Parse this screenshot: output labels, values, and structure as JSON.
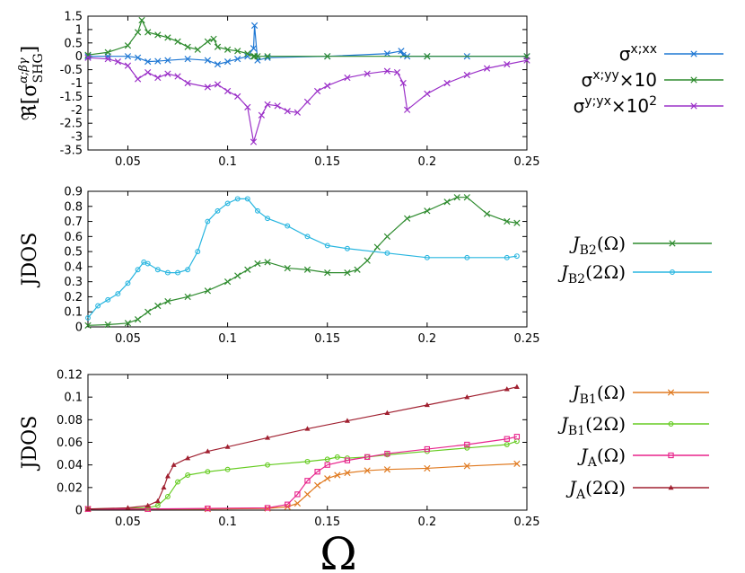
{
  "xlabel": "Ω",
  "chart_data": [
    {
      "type": "line",
      "ylabel": "ℜ[σ^{α;βγ}_SHG]",
      "ylabel_main": "ℜ[σ",
      "ylabel_sup": "α;βγ",
      "ylabel_sub": "SHG",
      "ylabel_close": "]",
      "xlim": [
        0.03,
        0.25
      ],
      "ylim": [
        -3.5,
        1.5
      ],
      "xticks": [
        "0.05",
        "0.1",
        "0.15",
        "0.2",
        "0.25"
      ],
      "yticks": [
        "1.5",
        "1",
        "0.5",
        "0",
        "-0.5",
        "-1",
        "-1.5",
        "-2",
        "-2.5",
        "-3",
        "-3.5"
      ],
      "series": [
        {
          "name": "σx;xx",
          "base": "σ",
          "sup": "x;xx",
          "suffix": "",
          "color": "#1f78d4",
          "marker": "x",
          "x": [
            0.03,
            0.04,
            0.05,
            0.055,
            0.06,
            0.065,
            0.07,
            0.08,
            0.09,
            0.095,
            0.1,
            0.105,
            0.11,
            0.113,
            0.1135,
            0.115,
            0.12,
            0.15,
            0.18,
            0.187,
            0.188,
            0.19,
            0.2,
            0.22,
            0.25
          ],
          "y": [
            0,
            0,
            0,
            -0.05,
            -0.2,
            -0.18,
            -0.15,
            -0.1,
            -0.15,
            -0.3,
            -0.2,
            -0.1,
            0,
            0.3,
            1.15,
            -0.15,
            -0.05,
            0,
            0.1,
            0.2,
            0.05,
            0,
            0,
            0,
            0
          ]
        },
        {
          "name": "σx;yy×10",
          "base": "σ",
          "sup": "x;yy",
          "suffix": "×10",
          "color": "#2e8b2e",
          "marker": "x",
          "x": [
            0.03,
            0.04,
            0.05,
            0.055,
            0.057,
            0.06,
            0.065,
            0.07,
            0.075,
            0.08,
            0.085,
            0.09,
            0.093,
            0.095,
            0.1,
            0.105,
            0.11,
            0.113,
            0.1135,
            0.115,
            0.12,
            0.15,
            0.2,
            0.25
          ],
          "y": [
            0.05,
            0.15,
            0.4,
            0.9,
            1.35,
            0.9,
            0.8,
            0.7,
            0.55,
            0.35,
            0.25,
            0.55,
            0.65,
            0.35,
            0.25,
            0.2,
            0.1,
            0,
            0,
            0,
            0,
            0,
            0,
            0
          ]
        },
        {
          "name": "σy;yx×10²",
          "base": "σ",
          "sup": "y;yx",
          "suffix": "×10",
          "suffix_sup": "2",
          "color": "#9b30c8",
          "marker": "x",
          "x": [
            0.03,
            0.04,
            0.045,
            0.05,
            0.055,
            0.06,
            0.065,
            0.07,
            0.075,
            0.08,
            0.09,
            0.095,
            0.1,
            0.105,
            0.11,
            0.113,
            0.117,
            0.12,
            0.125,
            0.13,
            0.135,
            0.14,
            0.145,
            0.15,
            0.16,
            0.17,
            0.18,
            0.185,
            0.188,
            0.19,
            0.2,
            0.21,
            0.22,
            0.23,
            0.24,
            0.25
          ],
          "y": [
            -0.05,
            -0.1,
            -0.2,
            -0.35,
            -0.85,
            -0.6,
            -0.8,
            -0.65,
            -0.75,
            -1.0,
            -1.15,
            -1.05,
            -1.3,
            -1.5,
            -1.9,
            -3.2,
            -2.2,
            -1.8,
            -1.85,
            -2.05,
            -2.1,
            -1.7,
            -1.3,
            -1.1,
            -0.8,
            -0.65,
            -0.55,
            -0.6,
            -1.0,
            -2.0,
            -1.4,
            -1.0,
            -0.7,
            -0.45,
            -0.3,
            -0.15
          ]
        }
      ]
    },
    {
      "type": "line",
      "ylabel": "JDOS",
      "xlim": [
        0.03,
        0.25
      ],
      "ylim": [
        0,
        0.9
      ],
      "xticks": [
        "0.05",
        "0.1",
        "0.15",
        "0.2",
        "0.25"
      ],
      "yticks": [
        "0.9",
        "0.8",
        "0.7",
        "0.6",
        "0.5",
        "0.4",
        "0.3",
        "0.2",
        "0.1",
        "0"
      ],
      "series": [
        {
          "name": "J_B2(Ω)",
          "base": "J",
          "sub": "B2",
          "arg": "(Ω)",
          "color": "#2e8b2e",
          "marker": "x",
          "x": [
            0.03,
            0.04,
            0.05,
            0.055,
            0.06,
            0.065,
            0.07,
            0.08,
            0.09,
            0.1,
            0.105,
            0.11,
            0.115,
            0.12,
            0.13,
            0.14,
            0.15,
            0.16,
            0.165,
            0.17,
            0.175,
            0.18,
            0.19,
            0.2,
            0.21,
            0.215,
            0.22,
            0.23,
            0.24,
            0.245
          ],
          "y": [
            0.01,
            0.015,
            0.025,
            0.05,
            0.1,
            0.14,
            0.17,
            0.2,
            0.24,
            0.3,
            0.34,
            0.38,
            0.42,
            0.43,
            0.39,
            0.38,
            0.36,
            0.36,
            0.38,
            0.44,
            0.53,
            0.6,
            0.72,
            0.77,
            0.83,
            0.86,
            0.86,
            0.75,
            0.7,
            0.69
          ]
        },
        {
          "name": "J_B2(2Ω)",
          "base": "J",
          "sub": "B2",
          "arg": "(2Ω)",
          "color": "#29b6e0",
          "marker": "o",
          "x": [
            0.03,
            0.035,
            0.04,
            0.045,
            0.05,
            0.055,
            0.058,
            0.06,
            0.065,
            0.07,
            0.075,
            0.08,
            0.085,
            0.09,
            0.095,
            0.1,
            0.105,
            0.11,
            0.115,
            0.12,
            0.13,
            0.14,
            0.15,
            0.16,
            0.18,
            0.2,
            0.22,
            0.24,
            0.245
          ],
          "y": [
            0.06,
            0.14,
            0.18,
            0.22,
            0.29,
            0.38,
            0.43,
            0.42,
            0.38,
            0.36,
            0.36,
            0.38,
            0.5,
            0.7,
            0.77,
            0.82,
            0.85,
            0.85,
            0.77,
            0.72,
            0.67,
            0.6,
            0.54,
            0.52,
            0.49,
            0.46,
            0.46,
            0.46,
            0.47
          ]
        }
      ]
    },
    {
      "type": "line",
      "ylabel": "JDOS",
      "xlim": [
        0.03,
        0.25
      ],
      "ylim": [
        0,
        0.12
      ],
      "xticks": [
        "0.05",
        "0.1",
        "0.15",
        "0.2",
        "0.25"
      ],
      "yticks": [
        "0.12",
        "0.1",
        "0.08",
        "0.06",
        "0.04",
        "0.02",
        "0"
      ],
      "series": [
        {
          "name": "J_B1(Ω)",
          "base": "J",
          "sub": "B1",
          "arg": "(Ω)",
          "color": "#e07a20",
          "marker": "x",
          "x": [
            0.03,
            0.06,
            0.09,
            0.12,
            0.13,
            0.135,
            0.14,
            0.145,
            0.15,
            0.155,
            0.16,
            0.17,
            0.18,
            0.2,
            0.22,
            0.245
          ],
          "y": [
            0.001,
            0.001,
            0.001,
            0.0015,
            0.003,
            0.006,
            0.014,
            0.022,
            0.028,
            0.031,
            0.033,
            0.035,
            0.036,
            0.037,
            0.039,
            0.041
          ]
        },
        {
          "name": "J_B1(2Ω)",
          "base": "J",
          "sub": "B1",
          "arg": "(2Ω)",
          "color": "#66cc22",
          "marker": "o",
          "x": [
            0.03,
            0.06,
            0.065,
            0.07,
            0.075,
            0.08,
            0.09,
            0.1,
            0.12,
            0.14,
            0.15,
            0.155,
            0.16,
            0.17,
            0.18,
            0.2,
            0.22,
            0.24,
            0.245
          ],
          "y": [
            0.001,
            0.002,
            0.004,
            0.012,
            0.025,
            0.031,
            0.034,
            0.036,
            0.04,
            0.043,
            0.045,
            0.047,
            0.046,
            0.047,
            0.049,
            0.052,
            0.055,
            0.058,
            0.061
          ]
        },
        {
          "name": "J_A(Ω)",
          "base": "J",
          "sub": "A",
          "arg": "(Ω)",
          "color": "#e8238c",
          "marker": "s",
          "x": [
            0.03,
            0.06,
            0.09,
            0.12,
            0.13,
            0.135,
            0.14,
            0.145,
            0.15,
            0.16,
            0.17,
            0.18,
            0.2,
            0.22,
            0.24,
            0.245
          ],
          "y": [
            0.001,
            0.001,
            0.0015,
            0.002,
            0.005,
            0.014,
            0.026,
            0.034,
            0.04,
            0.044,
            0.047,
            0.05,
            0.054,
            0.058,
            0.063,
            0.065
          ]
        },
        {
          "name": "J_A(2Ω)",
          "base": "J",
          "sub": "A",
          "arg": "(2Ω)",
          "color": "#a02030",
          "marker": "^",
          "x": [
            0.03,
            0.05,
            0.06,
            0.065,
            0.068,
            0.07,
            0.073,
            0.08,
            0.09,
            0.1,
            0.12,
            0.14,
            0.16,
            0.18,
            0.2,
            0.22,
            0.24,
            0.245
          ],
          "y": [
            0.001,
            0.002,
            0.004,
            0.008,
            0.02,
            0.03,
            0.04,
            0.046,
            0.052,
            0.056,
            0.064,
            0.072,
            0.079,
            0.086,
            0.093,
            0.1,
            0.107,
            0.109
          ]
        }
      ]
    }
  ]
}
